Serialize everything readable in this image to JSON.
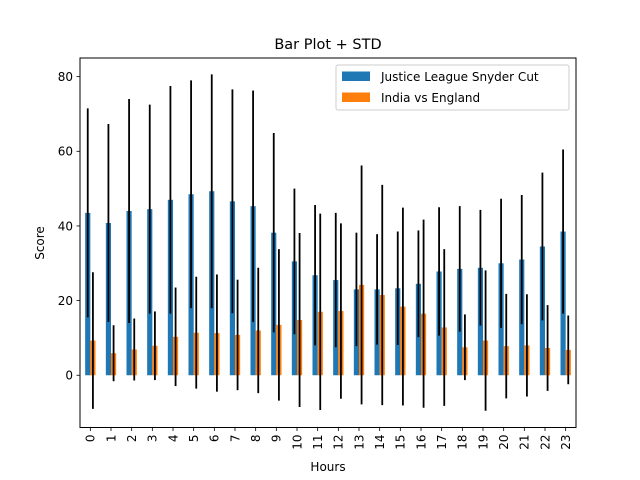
{
  "chart_data": {
    "type": "bar",
    "title": "Bar Plot + STD",
    "xlabel": "Hours",
    "ylabel": "Score",
    "ylim": [
      -14,
      85
    ],
    "yticks": [
      0,
      20,
      40,
      60,
      80
    ],
    "categories": [
      "0",
      "1",
      "2",
      "3",
      "4",
      "5",
      "6",
      "7",
      "8",
      "9",
      "10",
      "11",
      "12",
      "13",
      "14",
      "15",
      "16",
      "17",
      "18",
      "19",
      "20",
      "21",
      "22",
      "23"
    ],
    "legend_position": "top-right",
    "series": [
      {
        "name": "Justice League Snyder Cut",
        "color": "#1f77b4",
        "values": [
          43.5,
          40.8,
          44.0,
          44.5,
          47.0,
          48.5,
          49.3,
          46.6,
          45.3,
          38.2,
          30.5,
          26.8,
          25.5,
          23.0,
          23.0,
          23.3,
          24.5,
          27.8,
          28.5,
          28.8,
          30.0,
          31.0,
          34.5,
          38.5
        ],
        "std": [
          28.0,
          26.5,
          30.0,
          28.0,
          30.5,
          30.5,
          31.3,
          30.0,
          31.0,
          26.7,
          19.5,
          18.8,
          18.0,
          15.2,
          14.8,
          15.2,
          14.3,
          17.2,
          16.8,
          15.5,
          17.3,
          17.3,
          19.8,
          22.0
        ]
      },
      {
        "name": "India vs England",
        "color": "#ff7f0e",
        "values": [
          9.3,
          5.9,
          6.9,
          7.9,
          10.3,
          11.4,
          11.3,
          10.8,
          12.0,
          13.5,
          14.8,
          17.0,
          17.2,
          24.2,
          21.5,
          18.4,
          16.5,
          12.8,
          7.5,
          9.3,
          7.8,
          8.0,
          7.3,
          6.8
        ],
        "std": [
          18.3,
          7.5,
          8.3,
          9.2,
          13.2,
          15.0,
          15.7,
          14.8,
          16.8,
          20.3,
          23.3,
          26.3,
          23.5,
          32.0,
          29.5,
          26.5,
          25.2,
          21.0,
          8.8,
          18.8,
          14.0,
          13.7,
          11.5,
          9.2
        ]
      }
    ]
  }
}
